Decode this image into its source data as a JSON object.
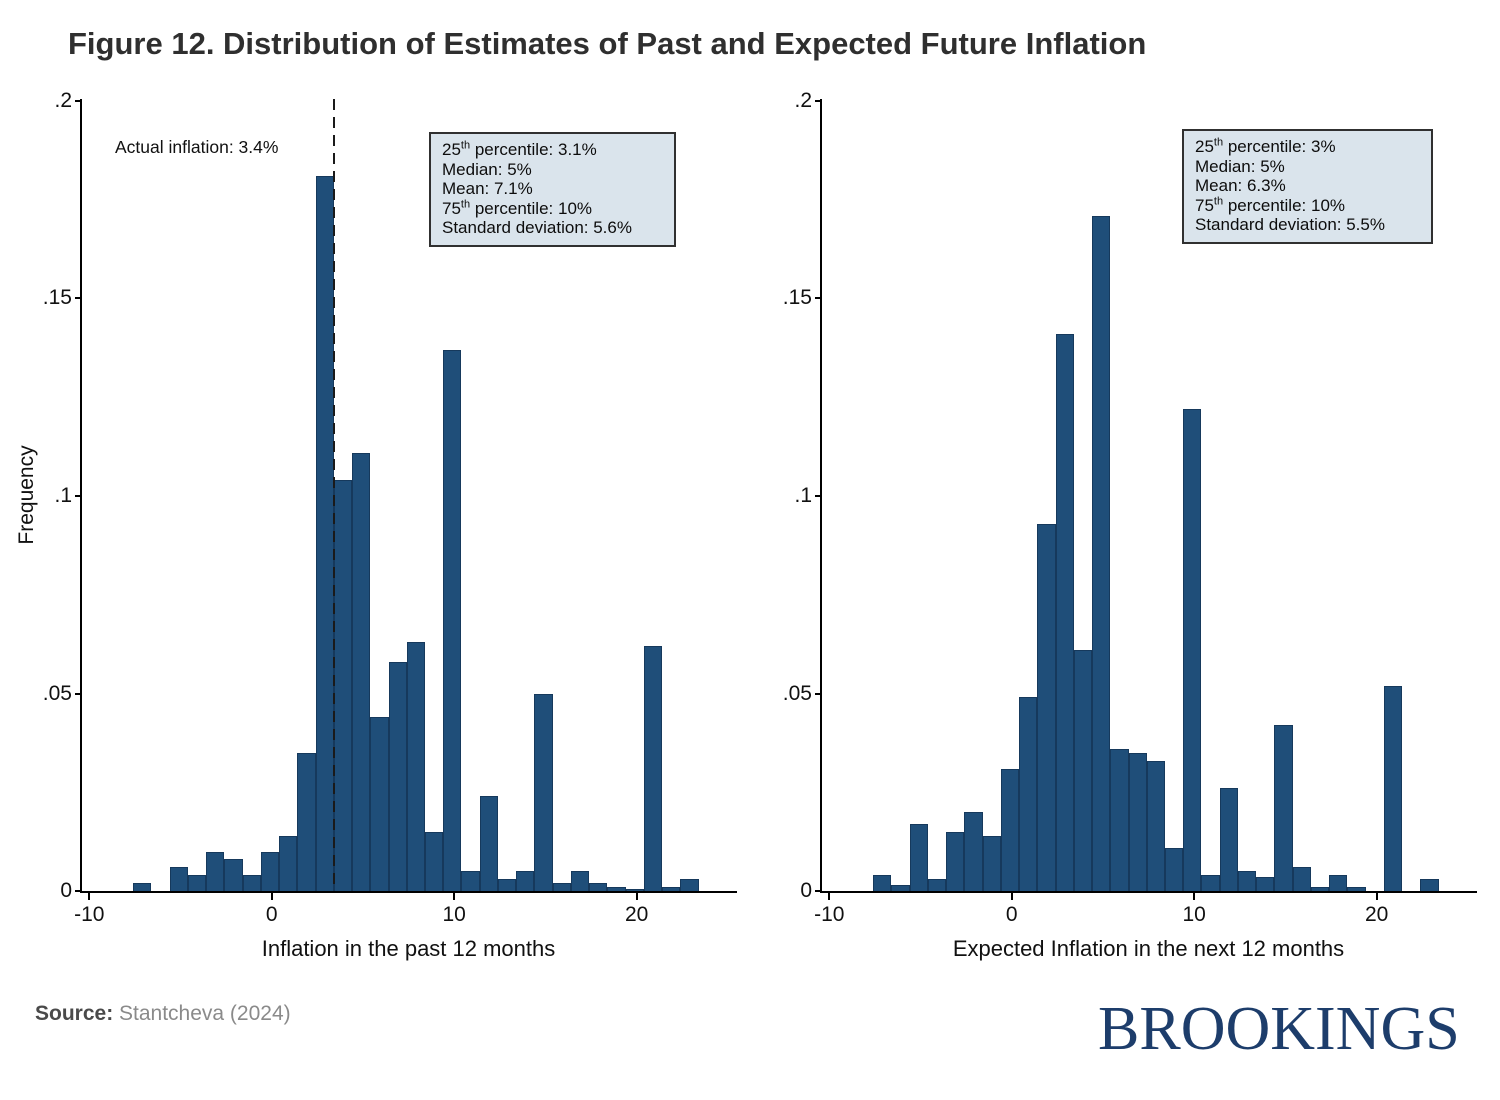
{
  "title": "Figure 12. Distribution of Estimates of Past and Expected Future Inflation",
  "footer": {
    "source_label": "Source:",
    "source_text": " Stantcheva (2024)",
    "logo_text": "BROOKINGS"
  },
  "colors": {
    "bar_fill": "#1f4e79",
    "bar_stroke": "#16395c",
    "box_bg": "#dae4ec",
    "box_border": "#303030",
    "logo": "#1d3d6b",
    "dash_line": "#1a1a1a"
  },
  "chart_data": [
    {
      "type": "bar",
      "panel": "past-inflation-histogram",
      "xlabel": "Inflation in the past 12 months",
      "ylabel": "Frequency",
      "xlim": [
        -10.4,
        25.5
      ],
      "ylim": [
        0,
        0.2005
      ],
      "bin_width": 1,
      "grid": false,
      "legend": null,
      "x_ticks": [
        -10,
        0,
        10,
        20
      ],
      "y_ticks": [
        {
          "v": 0,
          "label": "0"
        },
        {
          "v": 0.05,
          "label": ".05"
        },
        {
          "v": 0.1,
          "label": ".1"
        },
        {
          "v": 0.15,
          "label": ".15"
        },
        {
          "v": 0.2,
          "label": ".2"
        }
      ],
      "ref_line": {
        "x": 3.4,
        "label": "Actual inflation: 3.4%"
      },
      "stats_box": {
        "lines": [
          {
            "pre": "25",
            "sup": "th",
            "post": " percentile: 3.1%"
          },
          {
            "pre": "Median: 5%"
          },
          {
            "pre": "Mean: 7.1%"
          },
          {
            "pre": "75",
            "sup": "th",
            "post": " percentile: 10%"
          },
          {
            "pre": "Standard deviation: 5.6%"
          }
        ]
      },
      "bars": [
        {
          "x": -7.6,
          "v": 0.002
        },
        {
          "x": -5.6,
          "v": 0.006
        },
        {
          "x": -4.6,
          "v": 0.004
        },
        {
          "x": -3.6,
          "v": 0.01
        },
        {
          "x": -2.6,
          "v": 0.008
        },
        {
          "x": -1.6,
          "v": 0.004
        },
        {
          "x": -0.6,
          "v": 0.01
        },
        {
          "x": 0.4,
          "v": 0.014
        },
        {
          "x": 1.4,
          "v": 0.035
        },
        {
          "x": 2.4,
          "v": 0.181
        },
        {
          "x": 3.4,
          "v": 0.104
        },
        {
          "x": 4.4,
          "v": 0.111
        },
        {
          "x": 5.4,
          "v": 0.044
        },
        {
          "x": 6.4,
          "v": 0.058
        },
        {
          "x": 7.4,
          "v": 0.063
        },
        {
          "x": 8.4,
          "v": 0.015
        },
        {
          "x": 9.4,
          "v": 0.137
        },
        {
          "x": 10.4,
          "v": 0.005
        },
        {
          "x": 11.4,
          "v": 0.024
        },
        {
          "x": 12.4,
          "v": 0.003
        },
        {
          "x": 13.4,
          "v": 0.005
        },
        {
          "x": 14.4,
          "v": 0.05
        },
        {
          "x": 15.4,
          "v": 0.002
        },
        {
          "x": 16.4,
          "v": 0.005
        },
        {
          "x": 17.4,
          "v": 0.002
        },
        {
          "x": 18.4,
          "v": 0.001
        },
        {
          "x": 19.4,
          "v": 0.0005
        },
        {
          "x": 20.4,
          "v": 0.062
        },
        {
          "x": 21.4,
          "v": 0.001
        },
        {
          "x": 22.4,
          "v": 0.003
        }
      ]
    },
    {
      "type": "bar",
      "panel": "expected-inflation-histogram",
      "xlabel": "Expected Inflation in the next 12 months",
      "ylabel": "",
      "xlim": [
        -10.4,
        25.5
      ],
      "ylim": [
        0,
        0.2005
      ],
      "bin_width": 1,
      "grid": false,
      "legend": null,
      "x_ticks": [
        -10,
        0,
        10,
        20
      ],
      "y_ticks": [
        {
          "v": 0,
          "label": "0"
        },
        {
          "v": 0.05,
          "label": ".05"
        },
        {
          "v": 0.1,
          "label": ".1"
        },
        {
          "v": 0.15,
          "label": ".15"
        },
        {
          "v": 0.2,
          "label": ".2"
        }
      ],
      "ref_line": null,
      "stats_box": {
        "lines": [
          {
            "pre": "25",
            "sup": "th",
            "post": " percentile: 3%"
          },
          {
            "pre": "Median: 5%"
          },
          {
            "pre": "Mean: 6.3%"
          },
          {
            "pre": "75",
            "sup": "th",
            "post": " percentile: 10%"
          },
          {
            "pre": "Standard deviation: 5.5%"
          }
        ]
      },
      "bars": [
        {
          "x": -7.6,
          "v": 0.004
        },
        {
          "x": -6.6,
          "v": 0.0015
        },
        {
          "x": -5.6,
          "v": 0.017
        },
        {
          "x": -4.6,
          "v": 0.003
        },
        {
          "x": -3.6,
          "v": 0.015
        },
        {
          "x": -2.6,
          "v": 0.02
        },
        {
          "x": -1.6,
          "v": 0.014
        },
        {
          "x": -0.6,
          "v": 0.031
        },
        {
          "x": 0.4,
          "v": 0.049
        },
        {
          "x": 1.4,
          "v": 0.093
        },
        {
          "x": 2.4,
          "v": 0.141
        },
        {
          "x": 3.4,
          "v": 0.061
        },
        {
          "x": 4.4,
          "v": 0.171
        },
        {
          "x": 5.4,
          "v": 0.036
        },
        {
          "x": 6.4,
          "v": 0.035
        },
        {
          "x": 7.4,
          "v": 0.033
        },
        {
          "x": 8.4,
          "v": 0.011
        },
        {
          "x": 9.4,
          "v": 0.122
        },
        {
          "x": 10.4,
          "v": 0.004
        },
        {
          "x": 11.4,
          "v": 0.026
        },
        {
          "x": 12.4,
          "v": 0.005
        },
        {
          "x": 13.4,
          "v": 0.0035
        },
        {
          "x": 14.4,
          "v": 0.042
        },
        {
          "x": 15.4,
          "v": 0.006
        },
        {
          "x": 16.4,
          "v": 0.001
        },
        {
          "x": 17.4,
          "v": 0.004
        },
        {
          "x": 18.4,
          "v": 0.001
        },
        {
          "x": 20.4,
          "v": 0.052
        },
        {
          "x": 22.4,
          "v": 0.003
        }
      ]
    }
  ]
}
